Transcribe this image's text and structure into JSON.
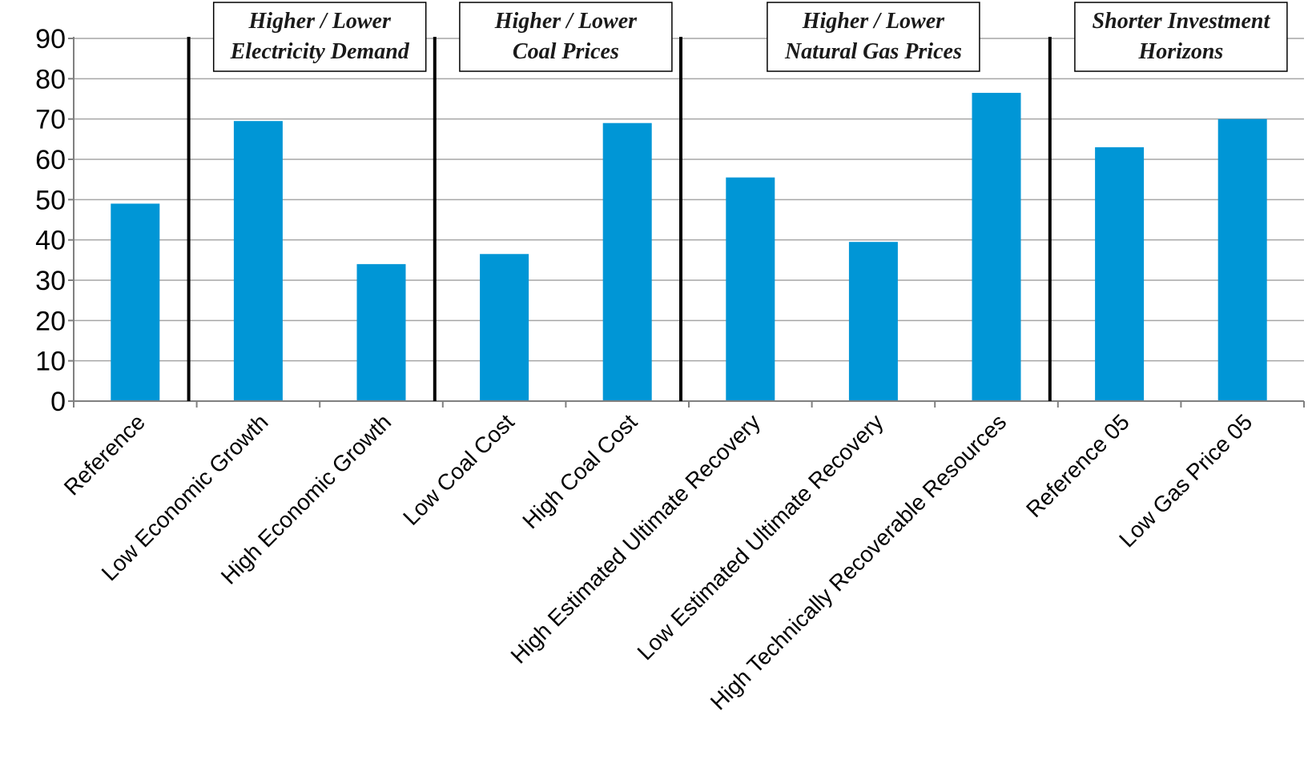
{
  "chart_data": {
    "type": "bar",
    "categories": [
      "Reference",
      "Low Economic Growth",
      "High Economic Growth",
      "Low Coal Cost",
      "High Coal Cost",
      "High Estimated Ultimate Recovery",
      "Low Estimated Ultimate Recovery",
      "High Technically Recoverable Resources",
      "Reference 05",
      "Low Gas Price 05"
    ],
    "values": [
      49,
      69.5,
      34,
      36.5,
      69,
      55.5,
      39.5,
      76.5,
      63,
      70
    ],
    "ylim": [
      0,
      90
    ],
    "yticks": [
      "0",
      "10",
      "20",
      "30",
      "40",
      "50",
      "60",
      "70",
      "80",
      "90"
    ],
    "title": "",
    "xlabel": "",
    "ylabel": "",
    "grid": true,
    "bar_color": "#0096D6",
    "grid_color": "#A6A6A6",
    "groups": [
      {
        "line1": "Higher / Lower",
        "line2": "Electricity Demand",
        "start": 1,
        "end": 2
      },
      {
        "line1": "Higher / Lower",
        "line2": "Coal Prices",
        "start": 3,
        "end": 4
      },
      {
        "line1": "Higher / Lower",
        "line2": "Natural Gas Prices",
        "start": 5,
        "end": 7
      },
      {
        "line1": "Shorter Investment",
        "line2": "Horizons",
        "start": 8,
        "end": 9
      }
    ]
  }
}
